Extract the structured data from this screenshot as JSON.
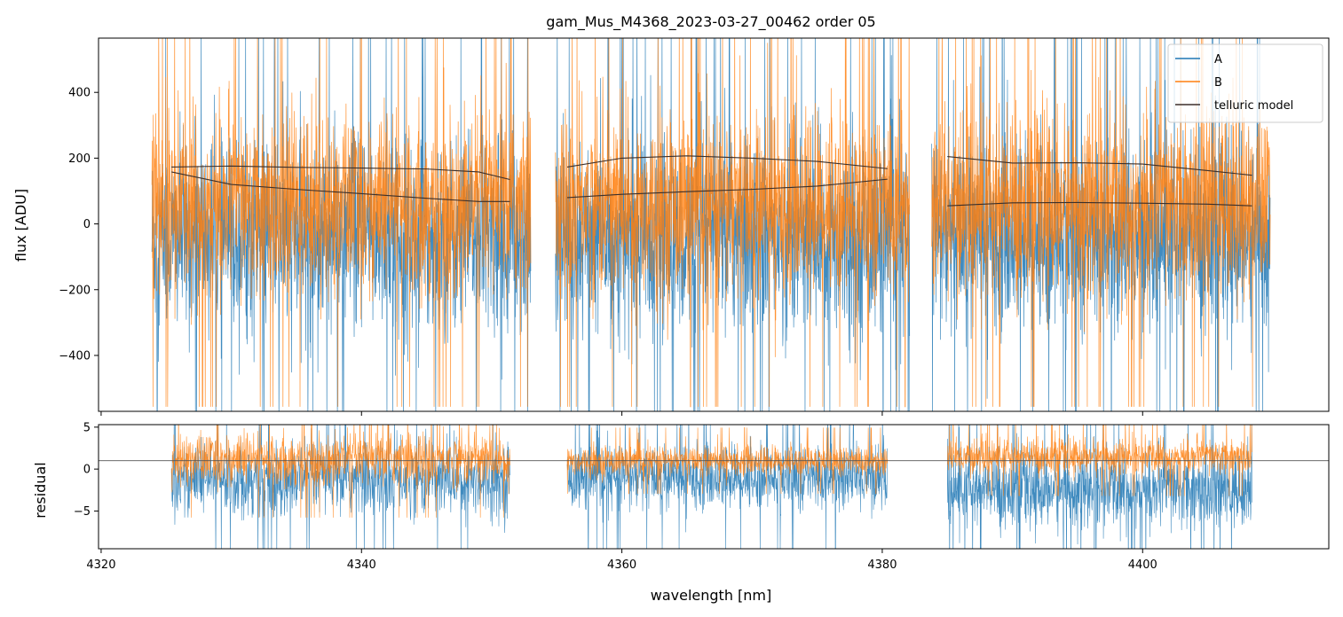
{
  "chart_data": [
    {
      "type": "line",
      "panel": "main",
      "title": "gam_Mus_M4368_2023-03-27_00462  order 05",
      "ylabel": "flux [ADU]",
      "xlim": [
        4319.8,
        4414.3
      ],
      "ylim": [
        -570,
        565
      ],
      "yticks": [
        -400,
        -200,
        0,
        200,
        400
      ],
      "ytick_labels": [
        "−400",
        "−200",
        "0",
        "200",
        "400"
      ],
      "xticks": [
        4320,
        4340,
        4360,
        4380,
        4400
      ],
      "legend": {
        "placement": "top-right",
        "entries": [
          "A",
          "B",
          "telluric model"
        ]
      },
      "series": [
        {
          "name": "A",
          "color": "#1f77b4",
          "description_kind": "noisy spectrum",
          "segments": [
            {
              "x_start": 4323.9,
              "x_end": 4353.0,
              "center": -40,
              "low": -520,
              "high": 420
            },
            {
              "x_start": 4354.9,
              "x_end": 4382.1,
              "center": -40,
              "low": -520,
              "high": 420
            },
            {
              "x_start": 4383.8,
              "x_end": 4409.8,
              "center": -40,
              "low": -520,
              "high": 420
            }
          ]
        },
        {
          "name": "B",
          "color": "#ff7f0e",
          "description_kind": "noisy spectrum",
          "segments": [
            {
              "x_start": 4323.9,
              "x_end": 4353.0,
              "center": 60,
              "low": -330,
              "high": 560
            },
            {
              "x_start": 4354.9,
              "x_end": 4382.1,
              "center": 60,
              "low": -330,
              "high": 560
            },
            {
              "x_start": 4383.8,
              "x_end": 4409.8,
              "center": 60,
              "low": -330,
              "high": 560
            }
          ]
        },
        {
          "name": "telluric model",
          "color": "#3b2f2a",
          "lines": [
            {
              "x": [
                4325.4,
                4330,
                4335,
                4340,
                4345,
                4349,
                4351.4
              ],
              "y": [
                173,
                176,
                172,
                170,
                167,
                158,
                135
              ]
            },
            {
              "x": [
                4325.4,
                4330,
                4335,
                4340,
                4345,
                4349,
                4351.4
              ],
              "y": [
                158,
                120,
                105,
                92,
                78,
                68,
                68
              ]
            },
            {
              "x": [
                4355.8,
                4360,
                4365,
                4370,
                4375,
                4380.4
              ],
              "y": [
                173,
                200,
                207,
                200,
                190,
                168
              ]
            },
            {
              "x": [
                4355.8,
                4360,
                4365,
                4370,
                4375,
                4380.4
              ],
              "y": [
                80,
                90,
                98,
                105,
                115,
                136
              ]
            },
            {
              "x": [
                4385.0,
                4390,
                4395,
                4400,
                4405,
                4408.4
              ],
              "y": [
                205,
                185,
                186,
                182,
                162,
                148
              ]
            },
            {
              "x": [
                4385.0,
                4390,
                4395,
                4400,
                4405,
                4408.4
              ],
              "y": [
                55,
                64,
                65,
                63,
                60,
                55
              ]
            }
          ]
        }
      ]
    },
    {
      "type": "line",
      "panel": "residual",
      "xlabel": "wavelength [nm]",
      "ylabel": "residual",
      "xlim": [
        4319.8,
        4414.3
      ],
      "ylim": [
        -9.5,
        5.3
      ],
      "yticks": [
        -5,
        0,
        5
      ],
      "ytick_labels": [
        "−5",
        "0",
        "5"
      ],
      "xticks": [
        4320,
        4340,
        4360,
        4380,
        4400
      ],
      "xtick_labels": [
        "4320",
        "4340",
        "4360",
        "4380",
        "4400"
      ],
      "reference_line_y": 1.0,
      "series": [
        {
          "name": "A",
          "color": "#1f77b4",
          "segments": [
            {
              "x_start": 4325.4,
              "x_end": 4351.4,
              "center": -1.2,
              "low": -8.5,
              "high": 5.3
            },
            {
              "x_start": 4355.8,
              "x_end": 4380.4,
              "center": -1.0,
              "low": -8.0,
              "high": 4.5
            },
            {
              "x_start": 4385.0,
              "x_end": 4408.4,
              "center": -2.5,
              "low": -9.5,
              "high": 5.3
            }
          ]
        },
        {
          "name": "B",
          "color": "#ff7f0e",
          "segments": [
            {
              "x_start": 4325.4,
              "x_end": 4351.4,
              "center": 1.2,
              "low": -4.8,
              "high": 5.3
            },
            {
              "x_start": 4355.8,
              "x_end": 4380.4,
              "center": 1.0,
              "low": -1.5,
              "high": 4.2
            },
            {
              "x_start": 4385.0,
              "x_end": 4408.4,
              "center": 1.5,
              "low": -1.5,
              "high": 5.3
            }
          ]
        }
      ]
    }
  ]
}
